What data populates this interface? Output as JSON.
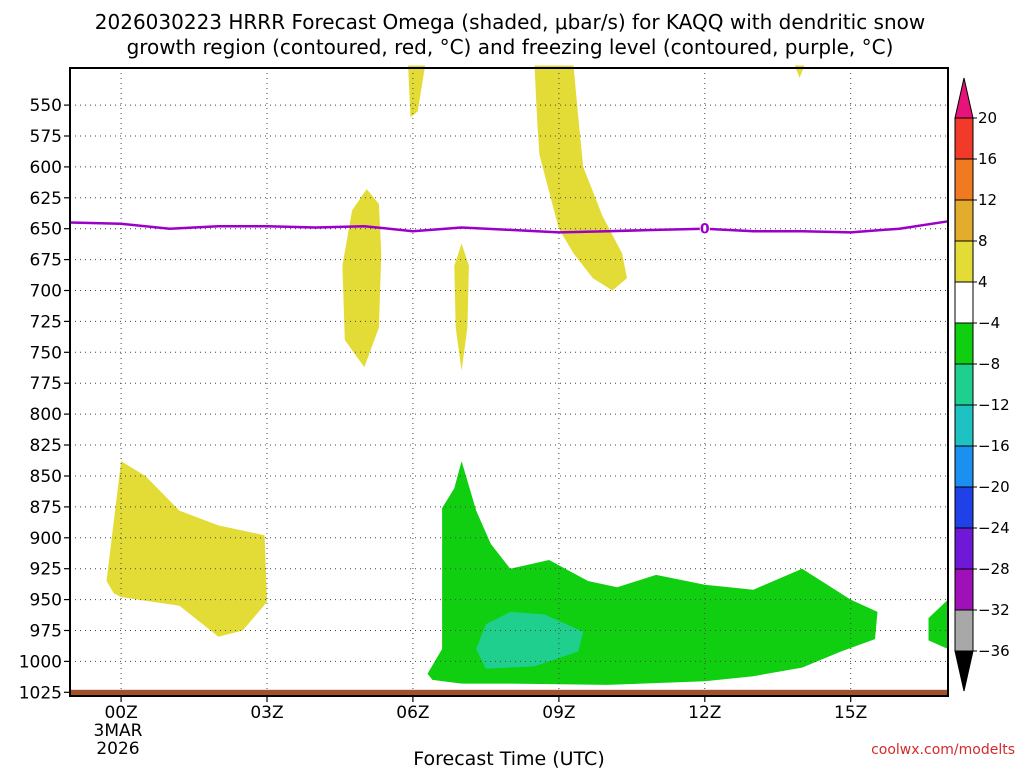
{
  "chart_data": {
    "type": "heatmap",
    "title_line1": "2026030223 HRRR Forecast Omega (shaded, μbar/s) for KAQQ with dendritic snow",
    "title_line2": "growth region (contoured, red, °C) and freezing level (contoured, purple, °C)",
    "xlabel": "Forecast Time (UTC)",
    "date_label_line1": "3MAR",
    "date_label_line2": "2026",
    "credit": "coolwx.com/modelts",
    "x_ticks": [
      {
        "hour": 0,
        "label": "00Z"
      },
      {
        "hour": 3,
        "label": "03Z"
      },
      {
        "hour": 6,
        "label": "06Z"
      },
      {
        "hour": 9,
        "label": "09Z"
      },
      {
        "hour": 12,
        "label": "12Z"
      },
      {
        "hour": 15,
        "label": "15Z"
      }
    ],
    "x_range_hours": [
      -1.05,
      17.0
    ],
    "y_range_hpa": [
      1028,
      520
    ],
    "y_ticks": [
      550,
      575,
      600,
      625,
      650,
      675,
      700,
      725,
      750,
      775,
      800,
      825,
      850,
      875,
      900,
      925,
      950,
      975,
      1000,
      1025
    ],
    "ground_level_hpa": 1023,
    "colorbar": {
      "levels": [
        20,
        16,
        12,
        8,
        4,
        -4,
        -8,
        -12,
        -16,
        -20,
        -24,
        -28,
        -32,
        -36
      ],
      "colors": [
        "#e8137a",
        "#f23a2a",
        "#f07a1f",
        "#e2ac2c",
        "#e4dc36",
        "#ffffff",
        "#10cf10",
        "#1fcf8e",
        "#1fc2c2",
        "#1c90f0",
        "#2040e8",
        "#7018d8",
        "#a010b8",
        "#a8a8a8",
        "#000000"
      ]
    },
    "freezing_level": {
      "label": "0",
      "color": "#9b00c9",
      "points": [
        [
          -1.05,
          645
        ],
        [
          0,
          646
        ],
        [
          1,
          650
        ],
        [
          2,
          648
        ],
        [
          3,
          648
        ],
        [
          4,
          649
        ],
        [
          5,
          648
        ],
        [
          6,
          652
        ],
        [
          7,
          649
        ],
        [
          8,
          651
        ],
        [
          9,
          653
        ],
        [
          10,
          652
        ],
        [
          11,
          651
        ],
        [
          12,
          650
        ],
        [
          13,
          652
        ],
        [
          14,
          652
        ],
        [
          15,
          653
        ],
        [
          16,
          650
        ],
        [
          17,
          644
        ]
      ]
    },
    "shaded_regions": [
      {
        "name": "upward-omega-4-8-top-06z",
        "value_range": "4 to 8",
        "color": "#e4dc36",
        "points": [
          [
            5.9,
            518
          ],
          [
            6.25,
            518
          ],
          [
            6.1,
            555
          ],
          [
            5.95,
            560
          ]
        ]
      },
      {
        "name": "upward-omega-4-8-09z-10z",
        "value_range": "4 to 8",
        "color": "#e4dc36",
        "points": [
          [
            8.5,
            518
          ],
          [
            9.3,
            518
          ],
          [
            9.4,
            560
          ],
          [
            9.5,
            600
          ],
          [
            9.9,
            640
          ],
          [
            10.3,
            670
          ],
          [
            10.4,
            690
          ],
          [
            10.1,
            700
          ],
          [
            9.7,
            690
          ],
          [
            9.3,
            670
          ],
          [
            9.0,
            650
          ],
          [
            8.8,
            620
          ],
          [
            8.6,
            590
          ],
          [
            8.55,
            560
          ]
        ]
      },
      {
        "name": "upward-omega-4-8-top-14z",
        "value_range": "4 to 8",
        "color": "#e4dc36",
        "points": [
          [
            13.85,
            518
          ],
          [
            14.05,
            518
          ],
          [
            13.95,
            528
          ]
        ]
      },
      {
        "name": "upward-omega-4-8-05z",
        "value_range": "4 to 8",
        "color": "#e4dc36",
        "points": [
          [
            5.05,
            618
          ],
          [
            5.3,
            630
          ],
          [
            5.35,
            670
          ],
          [
            5.3,
            730
          ],
          [
            5.0,
            762
          ],
          [
            4.6,
            740
          ],
          [
            4.55,
            680
          ],
          [
            4.75,
            635
          ]
        ]
      },
      {
        "name": "upward-omega-4-8-07z",
        "value_range": "4 to 8",
        "color": "#e4dc36",
        "points": [
          [
            7.0,
            662
          ],
          [
            7.15,
            680
          ],
          [
            7.12,
            730
          ],
          [
            7.0,
            765
          ],
          [
            6.88,
            730
          ],
          [
            6.85,
            680
          ]
        ]
      },
      {
        "name": "upward-omega-4-8-00z-03z",
        "value_range": "4 to 8",
        "color": "#e4dc36",
        "points": [
          [
            -0.3,
            935
          ],
          [
            0.0,
            838
          ],
          [
            0.5,
            850
          ],
          [
            1.2,
            878
          ],
          [
            2.0,
            890
          ],
          [
            2.95,
            898
          ],
          [
            3.0,
            952
          ],
          [
            2.5,
            975
          ],
          [
            2.0,
            980
          ],
          [
            1.2,
            955
          ],
          [
            0.0,
            948
          ],
          [
            -0.15,
            945
          ]
        ]
      },
      {
        "name": "downward-omega-minus4-minus8",
        "value_range": "-4 to -8",
        "color": "#10cf10",
        "points": [
          [
            6.6,
            876
          ],
          [
            6.85,
            860
          ],
          [
            7.0,
            838
          ],
          [
            7.3,
            878
          ],
          [
            7.6,
            905
          ],
          [
            8.0,
            925
          ],
          [
            8.8,
            918
          ],
          [
            9.6,
            935
          ],
          [
            10.2,
            940
          ],
          [
            11.0,
            930
          ],
          [
            12.0,
            938
          ],
          [
            13.0,
            942
          ],
          [
            14.0,
            925
          ],
          [
            15.0,
            950
          ],
          [
            15.55,
            960
          ],
          [
            15.5,
            982
          ],
          [
            14.8,
            992
          ],
          [
            14.0,
            1005
          ],
          [
            13.0,
            1012
          ],
          [
            12.0,
            1016
          ],
          [
            10.0,
            1019
          ],
          [
            8.0,
            1018
          ],
          [
            7.0,
            1018
          ],
          [
            6.4,
            1015
          ],
          [
            6.3,
            1010
          ],
          [
            6.6,
            990
          ]
        ]
      },
      {
        "name": "downward-omega-minus4-minus8-right",
        "value_range": "-4 to -8",
        "color": "#10cf10",
        "points": [
          [
            16.6,
            965
          ],
          [
            17.0,
            950
          ],
          [
            17.0,
            990
          ],
          [
            16.6,
            983
          ]
        ]
      },
      {
        "name": "downward-omega-minus8-minus12",
        "value_range": "-8 to -12",
        "color": "#1fcf8e",
        "points": [
          [
            7.5,
            970
          ],
          [
            8.0,
            960
          ],
          [
            8.7,
            962
          ],
          [
            9.5,
            976
          ],
          [
            9.4,
            992
          ],
          [
            8.5,
            1004
          ],
          [
            7.5,
            1006
          ],
          [
            7.3,
            990
          ]
        ]
      }
    ]
  }
}
